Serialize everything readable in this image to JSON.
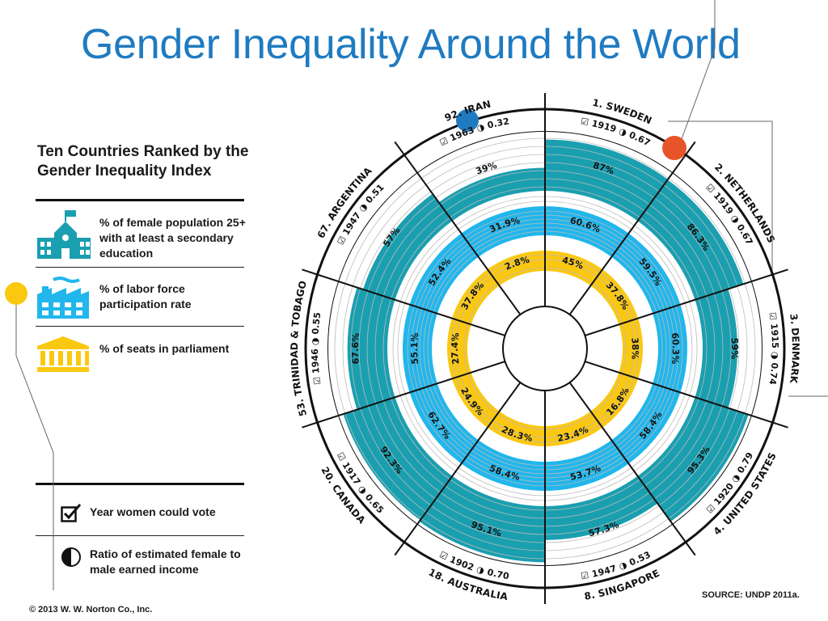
{
  "title": "Gender Inequality Around the World",
  "subtitle": "Ten Countries Ranked by the Gender Inequality Index",
  "legend": {
    "education": "% of female population 25+ with at least a secondary education",
    "labor": "% of labor force participation rate",
    "parliament": "% of seats in parliament"
  },
  "key": {
    "vote": "Year women could vote",
    "ratio": "Ratio of estimated female to male earned income"
  },
  "footer": "© 2013 W. W. Norton Co., Inc.",
  "source": "SOURCE:  UNDP 2011a.",
  "colors": {
    "title": "#1f7bc1",
    "education": "#1a9fb0",
    "labor": "#21b6ec",
    "parliament": "#fbc811",
    "marker_blue": "#1f7bc1",
    "marker_orange": "#e8542a",
    "marker_yellow": "#fbc811"
  },
  "chart_data": {
    "type": "radial",
    "title": "Gender Inequality Around the World",
    "series_names": [
      "% of female population 25+ with at least a secondary education",
      "% of labor force participation rate",
      "% of seats in parliament"
    ],
    "countries": [
      {
        "name": "1. SWEDEN",
        "vote_year": "1919",
        "income_ratio": "0.67",
        "education": 87,
        "labor": 60.6,
        "parliament": 45
      },
      {
        "name": "2. NETHERLANDS",
        "vote_year": "1919",
        "income_ratio": "0.67",
        "education": 86.3,
        "labor": 59.5,
        "parliament": 37.8
      },
      {
        "name": "3. DENMARK",
        "vote_year": "1915",
        "income_ratio": "0.74",
        "education": 59,
        "labor": 60.3,
        "parliament": 38
      },
      {
        "name": "4. UNITED STATES",
        "vote_year": "1920",
        "income_ratio": "0.79",
        "education": 95.3,
        "labor": 58.4,
        "parliament": 16.8
      },
      {
        "name": "8. SINGAPORE",
        "vote_year": "1947",
        "income_ratio": "0.53",
        "education": 57.3,
        "labor": 53.7,
        "parliament": 23.4
      },
      {
        "name": "18. AUSTRALIA",
        "vote_year": "1902",
        "income_ratio": "0.70",
        "education": 95.1,
        "labor": 58.4,
        "parliament": 28.3
      },
      {
        "name": "20. CANADA",
        "vote_year": "1917",
        "income_ratio": "0.65",
        "education": 92.3,
        "labor": 62.7,
        "parliament": 24.9
      },
      {
        "name": "53. TRINIDAD & TOBAGO",
        "vote_year": "1946",
        "income_ratio": "0.55",
        "education": 67.6,
        "labor": 55.1,
        "parliament": 27.4
      },
      {
        "name": "67. ARGENTINA",
        "vote_year": "1947",
        "income_ratio": "0.51",
        "education": 57,
        "labor": 52.4,
        "parliament": 37.8
      },
      {
        "name": "92. IRAN",
        "vote_year": "1963",
        "income_ratio": "0.32",
        "education": 39,
        "labor": 31.9,
        "parliament": 2.8
      }
    ],
    "labels": {
      "education": [
        "87%",
        "86.3%",
        "59%",
        "95.3%",
        "57.3%",
        "95.1%",
        "92.3%",
        "67.6%",
        "57%",
        "39%"
      ],
      "labor": [
        "60.6%",
        "59.5%",
        "60.3%",
        "58.4%",
        "53.7%",
        "58.4%",
        "62.7%",
        "55.1%",
        "52.4%",
        "31.9%"
      ],
      "parliament": [
        "45%",
        "37.8%",
        "38%",
        "16.8%",
        "23.4%",
        "28.3%",
        "24.9%",
        "27.4%",
        "37.8%",
        "2.8%"
      ]
    }
  }
}
